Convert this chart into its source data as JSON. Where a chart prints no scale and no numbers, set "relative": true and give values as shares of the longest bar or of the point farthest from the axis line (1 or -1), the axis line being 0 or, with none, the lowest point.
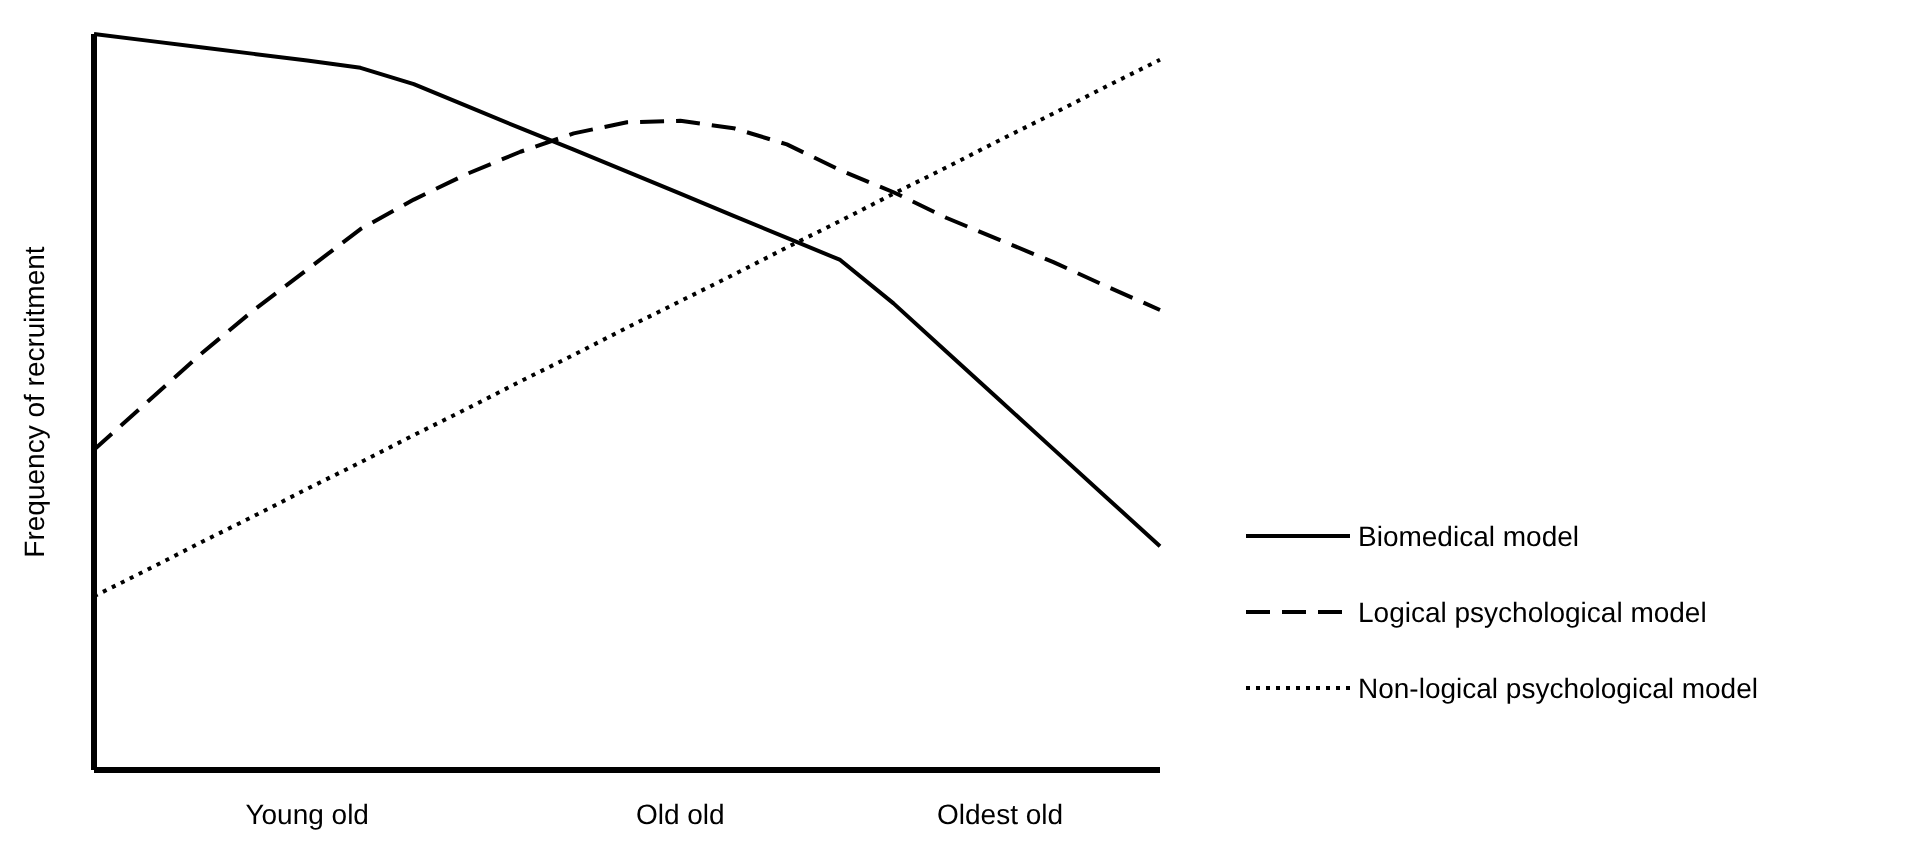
{
  "chart_data": {
    "type": "line",
    "relative": true,
    "ylabel": "Frequency of recruitment",
    "legend": "right",
    "grid": false,
    "categories": [
      null,
      null,
      null,
      null,
      "Young old",
      null,
      null,
      null,
      null,
      null,
      null,
      "Old old",
      null,
      null,
      null,
      null,
      null,
      "Oldest old",
      null,
      null,
      null
    ],
    "series": [
      {
        "name": "Biomedical model",
        "color": "#000000",
        "line_style": "solid",
        "values": [
          1.0,
          0.991,
          0.982,
          0.973,
          0.964,
          0.954,
          0.932,
          0.902,
          0.872,
          0.843,
          0.813,
          0.783,
          0.753,
          0.723,
          0.693,
          0.634,
          0.568,
          0.502,
          0.436,
          0.37,
          0.304
        ]
      },
      {
        "name": "Logical psychological model",
        "color": "#000000",
        "line_style": "dashed",
        "values": [
          0.435,
          0.5,
          0.565,
          0.625,
          0.68,
          0.735,
          0.775,
          0.81,
          0.84,
          0.865,
          0.88,
          0.882,
          0.872,
          0.85,
          0.815,
          0.785,
          0.75,
          0.72,
          0.69,
          0.657,
          0.625
        ]
      },
      {
        "name": "Non-logical psychological model",
        "color": "#000000",
        "line_style": "dotted",
        "values": [
          0.236,
          0.272,
          0.309,
          0.345,
          0.382,
          0.418,
          0.455,
          0.491,
          0.528,
          0.564,
          0.601,
          0.637,
          0.673,
          0.71,
          0.746,
          0.783,
          0.819,
          0.856,
          0.892,
          0.929,
          0.965
        ]
      }
    ]
  }
}
